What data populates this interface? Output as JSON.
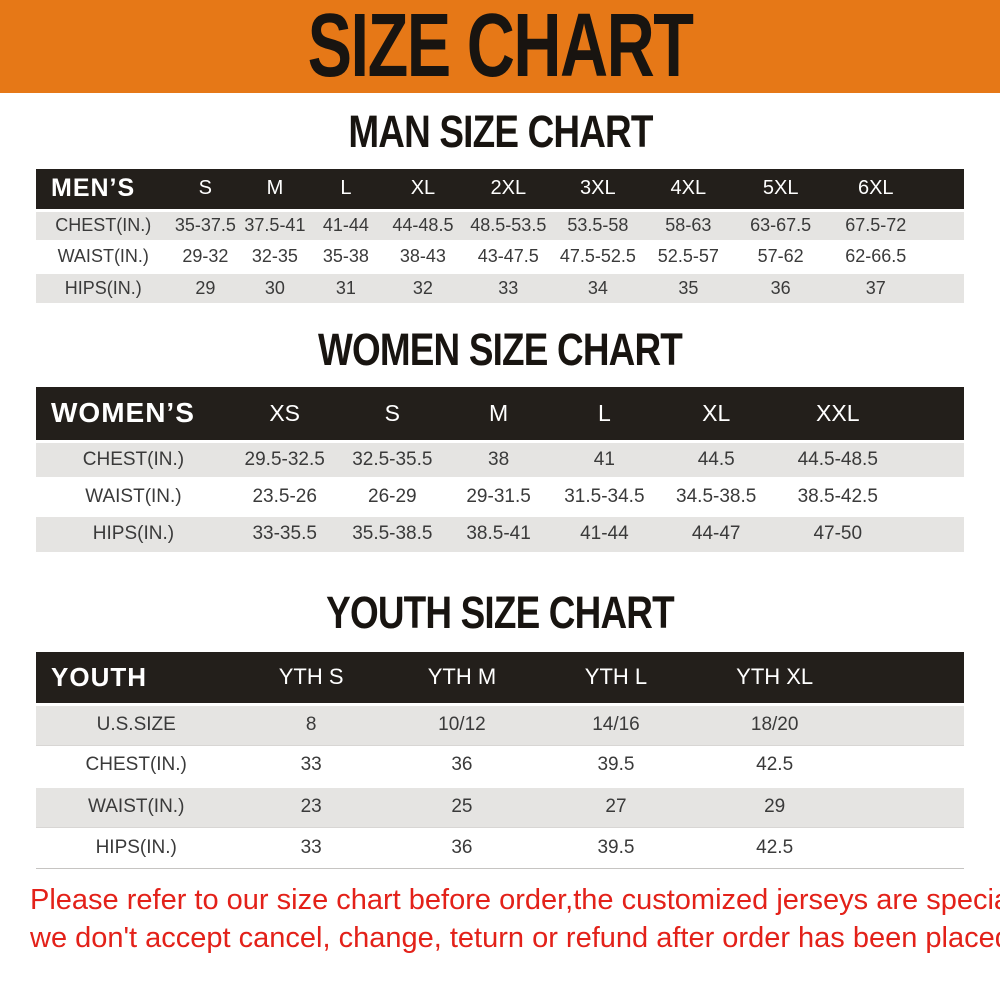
{
  "banner": {
    "title": "SIZE CHART"
  },
  "sections": [
    {
      "id": "men",
      "heading": "MAN SIZE CHART",
      "header_row": [
        "MEN’S",
        "S",
        "M",
        "L",
        "XL",
        "2XL",
        "3XL",
        "4XL",
        "5XL",
        "6XL"
      ],
      "rows": [
        [
          "CHEST(IN.)",
          "35-37.5",
          "37.5-41",
          "41-44",
          "44-48.5",
          "48.5-53.5",
          "53.5-58",
          "58-63",
          "63-67.5",
          "67.5-72"
        ],
        [
          "WAIST(IN.)",
          "29-32",
          "32-35",
          "35-38",
          "38-43",
          "43-47.5",
          "47.5-52.5",
          "52.5-57",
          "57-62",
          "62-66.5"
        ],
        [
          "HIPS(IN.)",
          "29",
          "30",
          "31",
          "32",
          "33",
          "34",
          "35",
          "36",
          "37"
        ]
      ]
    },
    {
      "id": "women",
      "heading": "WOMEN SIZE CHART",
      "header_row": [
        "WOMEN’S",
        "XS",
        "S",
        "M",
        "L",
        "XL",
        "XXL"
      ],
      "rows": [
        [
          "CHEST(IN.)",
          "29.5-32.5",
          "32.5-35.5",
          "38",
          "41",
          "44.5",
          "44.5-48.5"
        ],
        [
          "WAIST(IN.)",
          "23.5-26",
          "26-29",
          "29-31.5",
          "31.5-34.5",
          "34.5-38.5",
          "38.5-42.5"
        ],
        [
          "HIPS(IN.)",
          "33-35.5",
          "35.5-38.5",
          "38.5-41",
          "41-44",
          "44-47",
          "47-50"
        ]
      ]
    },
    {
      "id": "youth",
      "heading": "YOUTH SIZE CHART",
      "header_row": [
        "YOUTH",
        "YTH S",
        "YTH M",
        "YTH L",
        "YTH XL"
      ],
      "rows": [
        [
          "U.S.SIZE",
          "8",
          "10/12",
          "14/16",
          "18/20"
        ],
        [
          "CHEST(IN.)",
          "33",
          "36",
          "39.5",
          "42.5"
        ],
        [
          "WAIST(IN.)",
          "23",
          "25",
          "27",
          "29"
        ],
        [
          "HIPS(IN.)",
          "33",
          "36",
          "39.5",
          "42.5"
        ]
      ]
    }
  ],
  "footer": {
    "lines": [
      "Please refer to our size chart before order,the customized jerseys are special products,",
      "we don't accept cancel, change, teturn or refund after order has been placed!"
    ]
  },
  "colors": {
    "banner_bg": "#e67817",
    "table_header_bg": "#231f1b",
    "row_stripe": "#e5e4e2",
    "footer_text": "#e32119"
  }
}
